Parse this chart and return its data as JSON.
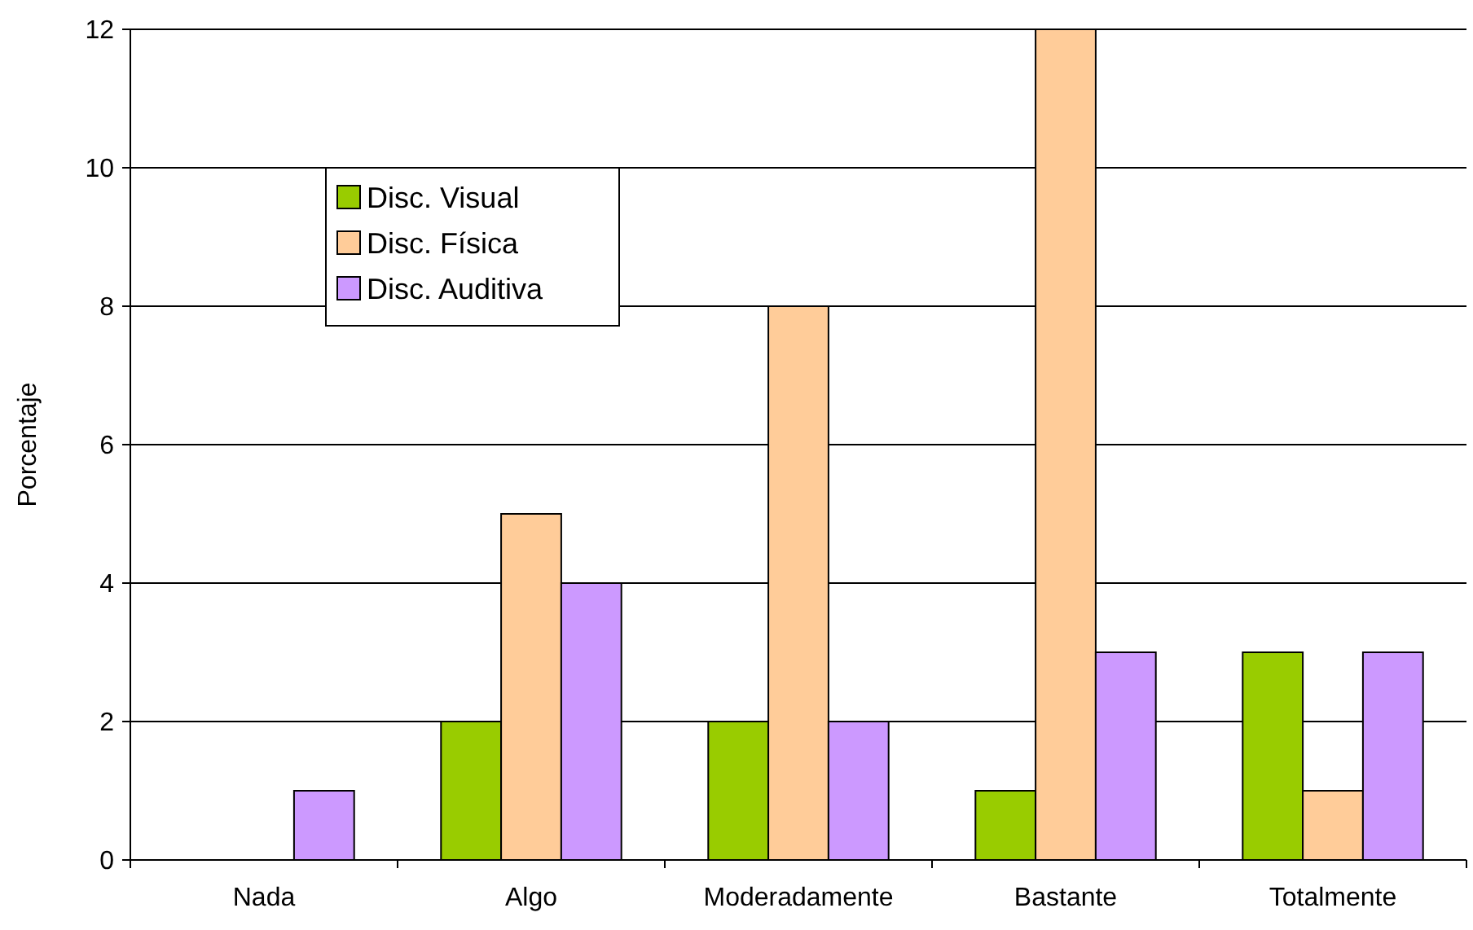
{
  "chart_data": {
    "type": "bar",
    "ylabel": "Porcentaje",
    "categories": [
      "Nada",
      "Algo",
      "Moderadamente",
      "Bastante",
      "Totalmente"
    ],
    "series": [
      {
        "name": "Disc. Visual",
        "color": "#99cc00",
        "values": [
          0,
          2,
          2,
          1,
          3
        ]
      },
      {
        "name": "Disc. Física",
        "color": "#ffcc99",
        "values": [
          0,
          5,
          8,
          12,
          1
        ]
      },
      {
        "name": "Disc. Auditiva",
        "color": "#cc99ff",
        "values": [
          1,
          4,
          2,
          3,
          3
        ]
      }
    ],
    "ylim": [
      0,
      12
    ],
    "yticks": [
      0,
      2,
      4,
      6,
      8,
      10,
      12
    ],
    "grid": "y",
    "legend": "top left"
  }
}
